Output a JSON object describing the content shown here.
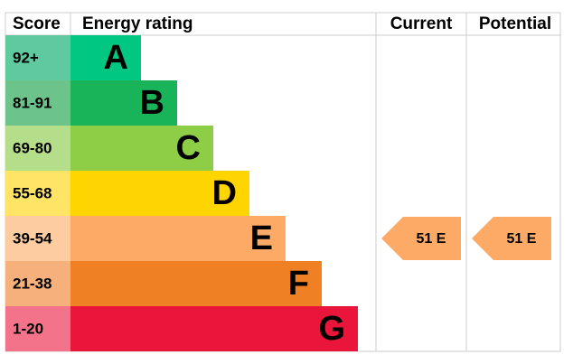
{
  "header": {
    "score": "Score",
    "rating": "Energy rating",
    "current": "Current",
    "potential": "Potential"
  },
  "bands": [
    {
      "score": "92+",
      "letter": "A",
      "color": "#00c781",
      "score_color": "#5fc9a0"
    },
    {
      "score": "81-91",
      "letter": "B",
      "color": "#19b459",
      "score_color": "#6cc48b"
    },
    {
      "score": "69-80",
      "letter": "C",
      "color": "#8dce46",
      "score_color": "#b5de8a"
    },
    {
      "score": "55-68",
      "letter": "D",
      "color": "#ffd500",
      "score_color": "#ffe466"
    },
    {
      "score": "39-54",
      "letter": "E",
      "color": "#fcaa65",
      "score_color": "#fdcca1"
    },
    {
      "score": "21-38",
      "letter": "F",
      "color": "#ef8023",
      "score_color": "#f5b07b"
    },
    {
      "score": "1-20",
      "letter": "G",
      "color": "#e9153b",
      "score_color": "#f2738a"
    }
  ],
  "current": "51 E",
  "potential": "51 E"
}
